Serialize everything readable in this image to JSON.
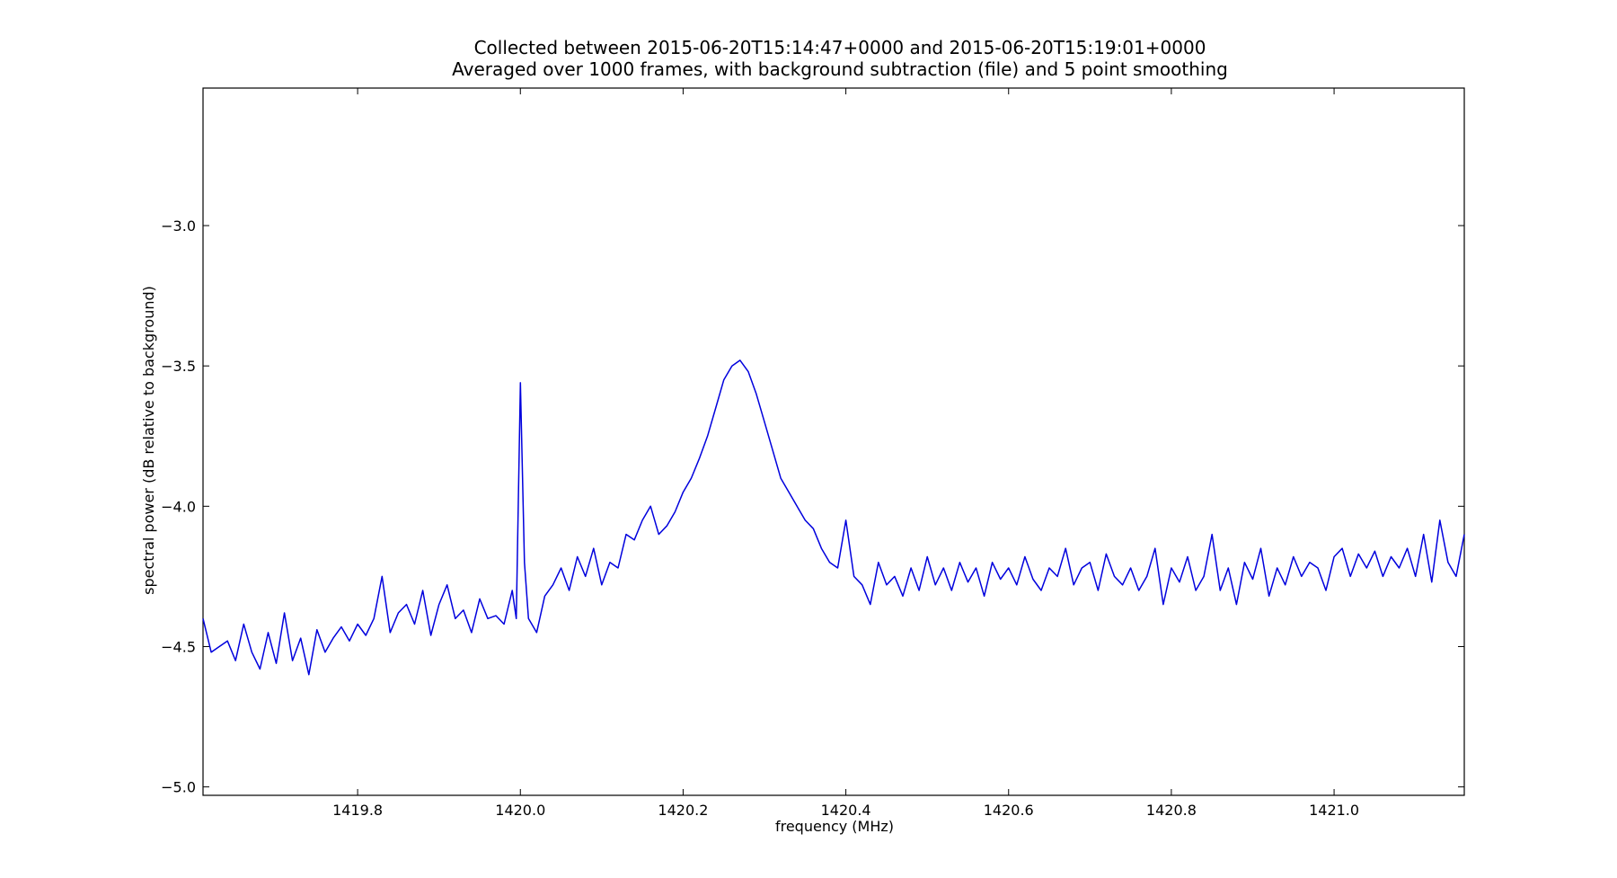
{
  "chart_data": {
    "type": "line",
    "title": "Collected between 2015-06-20T15:14:47+0000 and 2015-06-20T15:19:01+0000",
    "subtitle": "Averaged over 1000 frames, with background subtraction (file) and 5 point smoothing",
    "xlabel": "frequency (MHz)",
    "ylabel": "spectral power (dB relative to background)",
    "xlim": [
      1419.61,
      1421.16
    ],
    "ylim": [
      -5.03,
      -2.51
    ],
    "xticks": [
      1419.8,
      1420.0,
      1420.2,
      1420.4,
      1420.6,
      1420.8,
      1421.0
    ],
    "xtick_labels": [
      "1419.8",
      "1420.0",
      "1420.2",
      "1420.4",
      "1420.6",
      "1420.8",
      "1421.0"
    ],
    "yticks": [
      -3.0,
      -3.5,
      -4.0,
      -4.5,
      -5.0
    ],
    "ytick_labels": [
      "−3.0",
      "−3.5",
      "−4.0",
      "−4.5",
      "−5.0"
    ],
    "grid": false,
    "line_color": "#0000dd",
    "series": [
      {
        "x": [
          1419.61,
          1419.62,
          1419.63,
          1419.64,
          1419.65,
          1419.66,
          1419.67,
          1419.68,
          1419.69,
          1419.7,
          1419.71,
          1419.72,
          1419.73,
          1419.74,
          1419.75,
          1419.76,
          1419.77,
          1419.78,
          1419.79,
          1419.8,
          1419.81,
          1419.82,
          1419.83,
          1419.84,
          1419.85,
          1419.86,
          1419.87,
          1419.88,
          1419.89,
          1419.9,
          1419.91,
          1419.92,
          1419.93,
          1419.94,
          1419.95,
          1419.96,
          1419.97,
          1419.98,
          1419.99,
          1419.995,
          1420.0,
          1420.005,
          1420.01,
          1420.02,
          1420.03,
          1420.04,
          1420.05,
          1420.06,
          1420.07,
          1420.08,
          1420.09,
          1420.1,
          1420.11,
          1420.12,
          1420.13,
          1420.14,
          1420.15,
          1420.16,
          1420.17,
          1420.18,
          1420.19,
          1420.2,
          1420.21,
          1420.22,
          1420.23,
          1420.24,
          1420.25,
          1420.26,
          1420.27,
          1420.28,
          1420.29,
          1420.3,
          1420.31,
          1420.32,
          1420.33,
          1420.34,
          1420.35,
          1420.36,
          1420.37,
          1420.38,
          1420.39,
          1420.4,
          1420.41,
          1420.42,
          1420.43,
          1420.44,
          1420.45,
          1420.46,
          1420.47,
          1420.48,
          1420.49,
          1420.5,
          1420.51,
          1420.52,
          1420.53,
          1420.54,
          1420.55,
          1420.56,
          1420.57,
          1420.58,
          1420.59,
          1420.6,
          1420.61,
          1420.62,
          1420.63,
          1420.64,
          1420.65,
          1420.66,
          1420.67,
          1420.68,
          1420.69,
          1420.7,
          1420.71,
          1420.72,
          1420.73,
          1420.74,
          1420.75,
          1420.76,
          1420.77,
          1420.78,
          1420.79,
          1420.8,
          1420.81,
          1420.82,
          1420.83,
          1420.84,
          1420.85,
          1420.86,
          1420.87,
          1420.88,
          1420.89,
          1420.9,
          1420.91,
          1420.92,
          1420.93,
          1420.94,
          1420.95,
          1420.96,
          1420.97,
          1420.98,
          1420.99,
          1421.0,
          1421.01,
          1421.02,
          1421.03,
          1421.04,
          1421.05,
          1421.06,
          1421.07,
          1421.08,
          1421.09,
          1421.1,
          1421.11,
          1421.12,
          1421.13,
          1421.14,
          1421.15,
          1421.16
        ],
        "y": [
          -4.4,
          -4.52,
          -4.5,
          -4.48,
          -4.55,
          -4.42,
          -4.52,
          -4.58,
          -4.45,
          -4.56,
          -4.38,
          -4.55,
          -4.47,
          -4.6,
          -4.44,
          -4.52,
          -4.47,
          -4.43,
          -4.48,
          -4.42,
          -4.46,
          -4.4,
          -4.25,
          -4.45,
          -4.38,
          -4.35,
          -4.42,
          -4.3,
          -4.46,
          -4.35,
          -4.28,
          -4.4,
          -4.37,
          -4.45,
          -4.33,
          -4.4,
          -4.39,
          -4.42,
          -4.3,
          -4.4,
          -3.56,
          -4.2,
          -4.4,
          -4.45,
          -4.32,
          -4.28,
          -4.22,
          -4.3,
          -4.18,
          -4.25,
          -4.15,
          -4.28,
          -4.2,
          -4.22,
          -4.1,
          -4.12,
          -4.05,
          -4.0,
          -4.1,
          -4.07,
          -4.02,
          -3.95,
          -3.9,
          -3.83,
          -3.75,
          -3.65,
          -3.55,
          -3.5,
          -3.48,
          -3.52,
          -3.6,
          -3.7,
          -3.8,
          -3.9,
          -3.95,
          -4.0,
          -4.05,
          -4.08,
          -4.15,
          -4.2,
          -4.22,
          -4.05,
          -4.25,
          -4.28,
          -4.35,
          -4.2,
          -4.28,
          -4.25,
          -4.32,
          -4.22,
          -4.3,
          -4.18,
          -4.28,
          -4.22,
          -4.3,
          -4.2,
          -4.27,
          -4.22,
          -4.32,
          -4.2,
          -4.26,
          -4.22,
          -4.28,
          -4.18,
          -4.26,
          -4.3,
          -4.22,
          -4.25,
          -4.15,
          -4.28,
          -4.22,
          -4.2,
          -4.3,
          -4.17,
          -4.25,
          -4.28,
          -4.22,
          -4.3,
          -4.25,
          -4.15,
          -4.35,
          -4.22,
          -4.27,
          -4.18,
          -4.3,
          -4.25,
          -4.1,
          -4.3,
          -4.22,
          -4.35,
          -4.2,
          -4.26,
          -4.15,
          -4.32,
          -4.22,
          -4.28,
          -4.18,
          -4.25,
          -4.2,
          -4.22,
          -4.3,
          -4.18,
          -4.15,
          -4.25,
          -4.17,
          -4.22,
          -4.16,
          -4.25,
          -4.18,
          -4.22,
          -4.15,
          -4.25,
          -4.1,
          -4.27,
          -4.05,
          -4.2,
          -4.25,
          -4.1
        ]
      }
    ]
  }
}
